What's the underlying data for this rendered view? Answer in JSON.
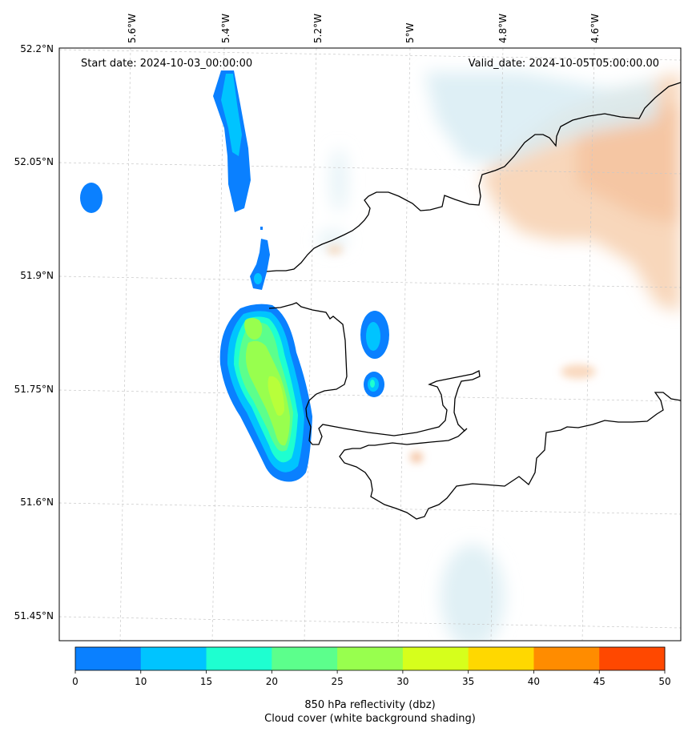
{
  "header": {
    "start_date": "Start date: 2024-10-03_00:00:00",
    "valid_date": "Valid_date: 2024-10-05T05:00:00.00"
  },
  "axes": {
    "lon_ticks": [
      "5.6°W",
      "5.4°W",
      "5.2°W",
      "5°W",
      "4.8°W",
      "4.6°W"
    ],
    "lat_ticks": [
      "52.2°N",
      "52.05°N",
      "51.9°N",
      "51.75°N",
      "51.6°N",
      "51.45°N"
    ]
  },
  "colorbar": {
    "ticks": [
      "0",
      "10",
      "15",
      "20",
      "25",
      "30",
      "35",
      "40",
      "45",
      "50"
    ],
    "colors": [
      "#0a80ff",
      "#00c4ff",
      "#1effd0",
      "#5cff8c",
      "#98ff4e",
      "#d6ff1c",
      "#ffd800",
      "#ff8c00",
      "#ff4800"
    ],
    "label_line1": "850 hPa reflectivity (dbz)",
    "label_line2": "Cloud cover (white background shading)"
  },
  "legend_colors": {
    "cloud_warm": "#f6c9a4",
    "cloud_cool": "#d8ecf3",
    "coastline": "#000000",
    "gridline": "#c8c8c8"
  }
}
